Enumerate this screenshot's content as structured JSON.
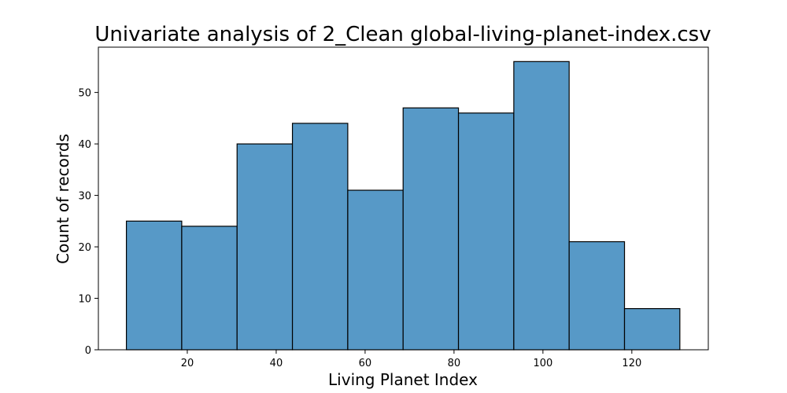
{
  "chart_data": {
    "type": "bar",
    "title": "Univariate analysis of 2_Clean global-living-planet-index.csv",
    "xlabel": "Living Planet Index",
    "ylabel": "Count of records",
    "bin_edges": [
      6.3,
      18.75,
      31.2,
      43.65,
      56.1,
      68.55,
      81.0,
      93.45,
      105.9,
      118.35,
      130.8
    ],
    "values": [
      25,
      24,
      40,
      44,
      31,
      47,
      46,
      56,
      21,
      8
    ],
    "xlim": [
      0,
      137.2
    ],
    "ylim": [
      0,
      58.8
    ],
    "xticks": [
      20,
      40,
      60,
      80,
      100,
      120
    ],
    "yticks": [
      0,
      10,
      20,
      30,
      40,
      50
    ],
    "grid": false,
    "bar_color": "#5799c7",
    "edge_color": "#000000"
  }
}
